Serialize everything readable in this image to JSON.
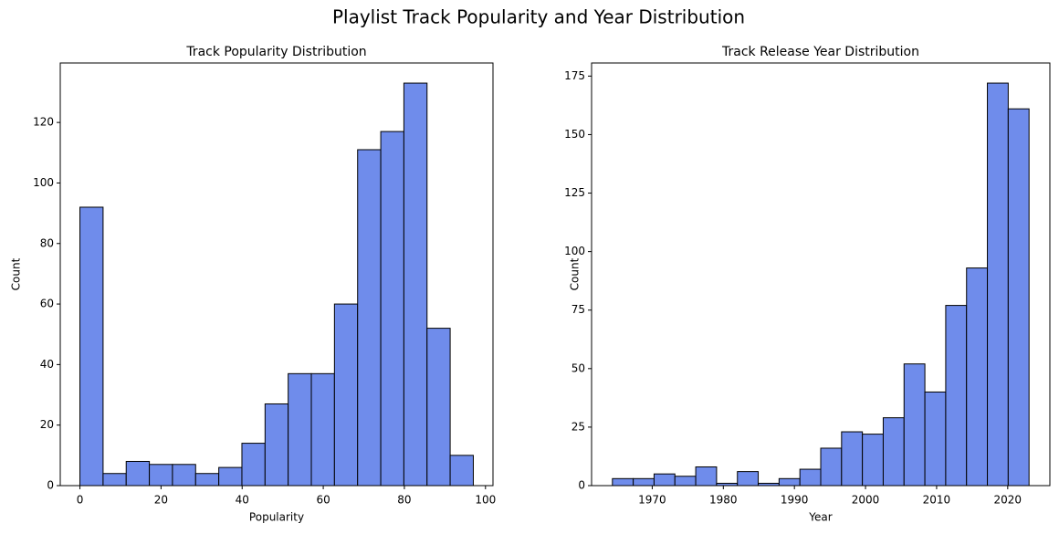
{
  "title": "Playlist Track Popularity and Year Distribution",
  "chart_data": [
    {
      "type": "histogram",
      "title": "Track Popularity Distribution",
      "xlabel": "Popularity",
      "ylabel": "Count",
      "bins": [
        0,
        5.71,
        11.41,
        17.12,
        22.82,
        28.53,
        34.24,
        39.94,
        45.65,
        51.35,
        57.06,
        62.76,
        68.47,
        74.18,
        79.88,
        85.59,
        91.29,
        97
      ],
      "values": [
        92,
        4,
        8,
        7,
        7,
        4,
        6,
        14,
        27,
        37,
        37,
        60,
        111,
        117,
        133,
        52,
        10
      ],
      "color": "#6f8ceb",
      "edgecolor": "#000000",
      "xlim": [
        -4.85,
        101.85
      ],
      "ylim": [
        0,
        139.65
      ],
      "xticks": [
        0,
        20,
        40,
        60,
        80,
        100
      ],
      "yticks": [
        0,
        20,
        40,
        60,
        80,
        100,
        120
      ]
    },
    {
      "type": "histogram",
      "title": "Track Release Year Distribution",
      "xlabel": "Year",
      "ylabel": "Count",
      "bins": [
        1964.4,
        1967.33,
        1970.26,
        1973.19,
        1976.12,
        1979.05,
        1981.98,
        1984.91,
        1987.84,
        1990.77,
        1993.7,
        1996.63,
        1999.56,
        2002.49,
        2005.42,
        2008.35,
        2011.28,
        2014.21,
        2017.14,
        2020.07,
        2023
      ],
      "values": [
        3,
        3,
        5,
        4,
        8,
        1,
        6,
        1,
        3,
        7,
        16,
        23,
        22,
        29,
        52,
        40,
        77,
        93,
        172,
        161
      ],
      "color": "#6f8ceb",
      "edgecolor": "#000000",
      "xlim": [
        1961.47,
        2025.93
      ],
      "ylim": [
        0,
        180.6
      ],
      "xticks": [
        1970,
        1980,
        1990,
        2000,
        2010,
        2020
      ],
      "yticks": [
        0,
        25,
        50,
        75,
        100,
        125,
        150,
        175
      ]
    }
  ]
}
